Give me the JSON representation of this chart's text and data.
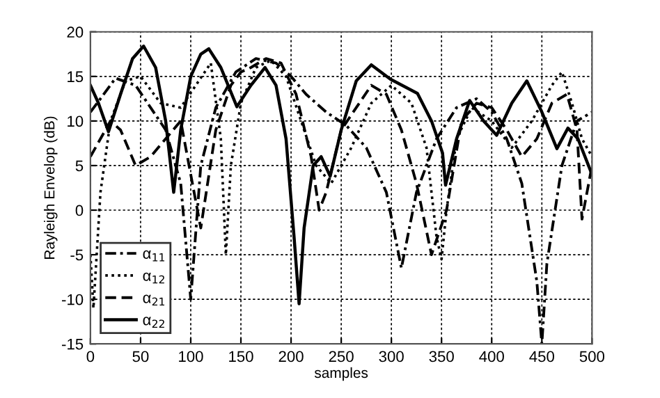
{
  "chart_data": {
    "type": "line",
    "xlabel": "samples",
    "ylabel": "Rayleigh Envelop (dB)",
    "xlim": [
      0,
      500
    ],
    "ylim": [
      -15,
      20
    ],
    "xticks": [
      0,
      50,
      100,
      150,
      200,
      250,
      300,
      350,
      400,
      450,
      500
    ],
    "yticks": [
      -15,
      -10,
      -5,
      0,
      5,
      10,
      15,
      20
    ],
    "grid": true,
    "legend": "bottom left",
    "series": [
      {
        "name": "α$_{11}$",
        "color": "#000000",
        "line_style": "dashdot",
        "x": [
          0,
          10,
          25,
          45,
          60,
          75,
          90,
          100,
          110,
          125,
          145,
          165,
          185,
          200,
          215,
          235,
          255,
          275,
          295,
          310,
          325,
          345,
          365,
          385,
          400,
          415,
          430,
          445,
          450,
          455,
          470,
          485,
          500
        ],
        "values": [
          11,
          12.5,
          14.8,
          14,
          11.5,
          9,
          3,
          -10,
          5,
          11.5,
          15.5,
          17,
          16.5,
          15,
          13,
          11,
          9.5,
          7,
          2,
          -6.5,
          2,
          8,
          11.5,
          12.5,
          11,
          8,
          3,
          -8,
          -15,
          -6,
          5,
          10,
          11
        ]
      },
      {
        "name": "α$_{12}$",
        "color": "#000000",
        "line_style": "dotted",
        "x": [
          0,
          3,
          10,
          20,
          35,
          50,
          70,
          90,
          105,
          120,
          130,
          135,
          140,
          150,
          165,
          180,
          195,
          210,
          225,
          240,
          260,
          280,
          300,
          320,
          335,
          345,
          350,
          355,
          365,
          380,
          400,
          420,
          440,
          460,
          470,
          480,
          490,
          500
        ],
        "values": [
          -5,
          -11,
          2,
          10,
          14.5,
          15,
          12,
          11.5,
          14,
          16.5,
          8,
          -5,
          5,
          12,
          16,
          16.8,
          15,
          10,
          5,
          3,
          7,
          12,
          14,
          12,
          7,
          -3,
          -5.5,
          0,
          8,
          11.5,
          10,
          7,
          10,
          14,
          15.5,
          12,
          8,
          6
        ]
      },
      {
        "name": "α$_{21}$",
        "color": "#000000",
        "line_style": "dashed",
        "x": [
          0,
          10,
          20,
          30,
          45,
          60,
          75,
          90,
          100,
          110,
          125,
          140,
          150,
          160,
          175,
          190,
          205,
          220,
          228,
          235,
          250,
          265,
          280,
          295,
          310,
          325,
          340,
          355,
          370,
          385,
          400,
          415,
          430,
          445,
          460,
          475,
          485,
          490,
          500
        ],
        "values": [
          6,
          8,
          10,
          9,
          5,
          6,
          8,
          10,
          4,
          -2,
          9,
          14,
          15.5,
          16,
          17,
          16.5,
          13,
          6,
          0,
          2,
          9,
          11.5,
          14,
          13,
          9,
          3,
          -5,
          0,
          10,
          12,
          11.5,
          9,
          6,
          8,
          12,
          13,
          9,
          -1,
          5
        ]
      },
      {
        "name": "α$_{22}$",
        "color": "#000000",
        "line_style": "solid",
        "x": [
          0,
          8,
          18,
          30,
          42,
          53,
          65,
          75,
          83,
          90,
          100,
          110,
          118,
          130,
          146,
          160,
          174,
          185,
          195,
          203,
          208,
          213,
          222,
          230,
          239,
          250,
          265,
          280,
          299,
          326,
          340,
          351,
          354,
          365,
          378,
          392,
          405,
          420,
          435,
          450,
          465,
          476,
          486,
          500
        ],
        "values": [
          14,
          12,
          8.8,
          13,
          17,
          18.4,
          16,
          10,
          2,
          9,
          15,
          17.5,
          18.1,
          16,
          11.6,
          14,
          16,
          14,
          8,
          -3,
          -10.5,
          -2,
          5,
          6,
          3.8,
          9,
          14.5,
          16.3,
          14.7,
          13.1,
          10,
          6.4,
          2.8,
          8,
          12.3,
          10,
          8.4,
          12,
          14.5,
          11,
          6.9,
          9.2,
          8,
          4
        ]
      }
    ]
  }
}
